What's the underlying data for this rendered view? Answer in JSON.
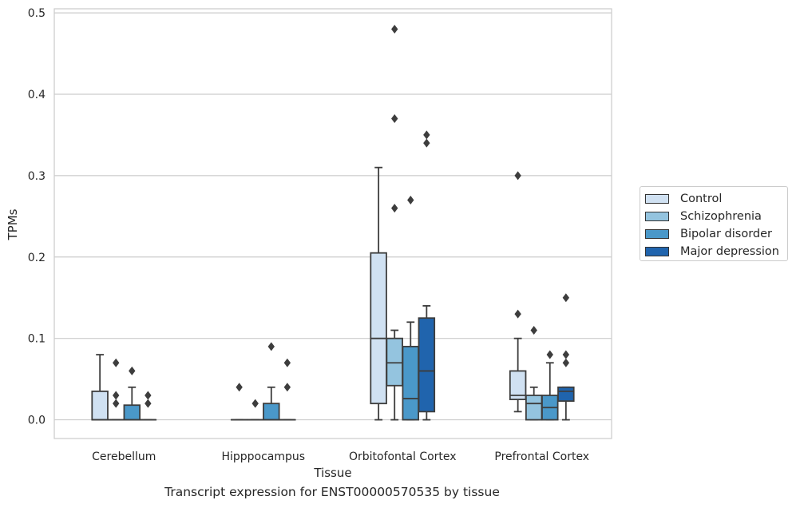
{
  "caption": "Transcript expression for ENST00000570535 by tissue",
  "chart_data": {
    "type": "box",
    "xlabel": "Tissue",
    "ylabel": "TPMs",
    "ylim": [
      -0.023,
      0.505
    ],
    "yticks": [
      "0.0",
      "0.1",
      "0.2",
      "0.3",
      "0.4",
      "0.5"
    ],
    "categories": [
      "Cerebellum",
      "Hipppocampus",
      "Orbitofontal Cortex",
      "Prefrontal Cortex"
    ],
    "grid": "horizontal",
    "legend_position": "right",
    "series": [
      {
        "name": "Control",
        "color": "#d0e1f2",
        "boxes": [
          {
            "q1": 0.0,
            "median": 0.0,
            "q3": 0.035,
            "whislo": 0.0,
            "whishi": 0.08,
            "fliers": []
          },
          {
            "q1": 0.0,
            "median": 0.0,
            "q3": 0.0,
            "whislo": 0.0,
            "whishi": 0.0,
            "fliers": [
              0.04
            ]
          },
          {
            "q1": 0.02,
            "median": 0.1,
            "q3": 0.205,
            "whislo": 0.0,
            "whishi": 0.31,
            "fliers": []
          },
          {
            "q1": 0.025,
            "median": 0.03,
            "q3": 0.06,
            "whislo": 0.01,
            "whishi": 0.1,
            "fliers": [
              0.13,
              0.3
            ]
          }
        ]
      },
      {
        "name": "Schizophrenia",
        "color": "#94c4df",
        "boxes": [
          {
            "q1": 0.0,
            "median": 0.0,
            "q3": 0.0,
            "whislo": 0.0,
            "whishi": 0.0,
            "fliers": [
              0.02,
              0.03,
              0.07
            ]
          },
          {
            "q1": 0.0,
            "median": 0.0,
            "q3": 0.0,
            "whislo": 0.0,
            "whishi": 0.0,
            "fliers": [
              0.02
            ]
          },
          {
            "q1": 0.042,
            "median": 0.07,
            "q3": 0.1,
            "whislo": 0.0,
            "whishi": 0.11,
            "fliers": [
              0.26,
              0.37,
              0.48
            ]
          },
          {
            "q1": 0.0,
            "median": 0.02,
            "q3": 0.03,
            "whislo": 0.0,
            "whishi": 0.04,
            "fliers": [
              0.11
            ]
          }
        ]
      },
      {
        "name": "Bipolar disorder",
        "color": "#4a98c9",
        "boxes": [
          {
            "q1": 0.0,
            "median": 0.0,
            "q3": 0.018,
            "whislo": 0.0,
            "whishi": 0.04,
            "fliers": [
              0.06
            ]
          },
          {
            "q1": 0.0,
            "median": 0.0,
            "q3": 0.02,
            "whislo": 0.0,
            "whishi": 0.04,
            "fliers": [
              0.09
            ]
          },
          {
            "q1": 0.0,
            "median": 0.026,
            "q3": 0.09,
            "whislo": 0.0,
            "whishi": 0.12,
            "fliers": [
              0.27
            ]
          },
          {
            "q1": 0.0,
            "median": 0.015,
            "q3": 0.03,
            "whislo": 0.0,
            "whishi": 0.07,
            "fliers": [
              0.08
            ]
          }
        ]
      },
      {
        "name": "Major depression",
        "color": "#2064ad",
        "boxes": [
          {
            "q1": 0.0,
            "median": 0.0,
            "q3": 0.0,
            "whislo": 0.0,
            "whishi": 0.0,
            "fliers": [
              0.02,
              0.03
            ]
          },
          {
            "q1": 0.0,
            "median": 0.0,
            "q3": 0.0,
            "whislo": 0.0,
            "whishi": 0.0,
            "fliers": [
              0.04,
              0.07
            ]
          },
          {
            "q1": 0.01,
            "median": 0.06,
            "q3": 0.125,
            "whislo": 0.0,
            "whishi": 0.14,
            "fliers": [
              0.34,
              0.35
            ]
          },
          {
            "q1": 0.023,
            "median": 0.035,
            "q3": 0.04,
            "whislo": 0.0,
            "whishi": 0.04,
            "fliers": [
              0.07,
              0.08,
              0.15
            ]
          }
        ]
      }
    ]
  }
}
